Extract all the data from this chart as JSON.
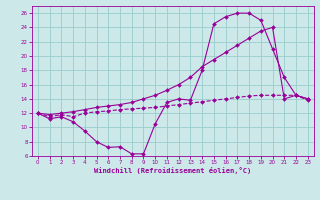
{
  "xlabel": "Windchill (Refroidissement éolien,°C)",
  "bg_color": "#cce8e8",
  "line_color": "#990099",
  "grid_color": "#99cccc",
  "xlim": [
    -0.5,
    23.5
  ],
  "ylim": [
    6,
    27
  ],
  "xticks": [
    0,
    1,
    2,
    3,
    4,
    5,
    6,
    7,
    8,
    9,
    10,
    11,
    12,
    13,
    14,
    15,
    16,
    17,
    18,
    19,
    20,
    21,
    22,
    23
  ],
  "yticks": [
    6,
    8,
    10,
    12,
    14,
    16,
    18,
    20,
    22,
    24,
    26
  ],
  "series1_x": [
    0,
    1,
    2,
    3,
    4,
    5,
    6,
    7,
    8,
    9,
    10,
    11,
    12,
    13,
    14,
    15,
    16,
    17,
    18,
    19,
    20,
    21,
    22,
    23
  ],
  "series1_y": [
    12,
    11.2,
    11.5,
    10.8,
    9.5,
    8.0,
    7.2,
    7.3,
    6.3,
    6.3,
    10.5,
    13.5,
    14.0,
    13.8,
    18.0,
    24.5,
    25.5,
    26.0,
    26.0,
    25.0,
    21.0,
    17.0,
    14.5,
    14.0
  ],
  "series2_x": [
    0,
    1,
    2,
    3,
    4,
    5,
    6,
    7,
    8,
    9,
    10,
    11,
    12,
    13,
    14,
    15,
    16,
    17,
    18,
    19,
    20,
    21,
    22,
    23
  ],
  "series2_y": [
    12,
    11.5,
    11.8,
    11.5,
    12.0,
    12.2,
    12.3,
    12.5,
    12.6,
    12.7,
    12.8,
    13.0,
    13.2,
    13.4,
    13.6,
    13.8,
    14.0,
    14.2,
    14.4,
    14.5,
    14.5,
    14.5,
    14.5,
    13.8
  ],
  "series3_x": [
    0,
    1,
    2,
    3,
    4,
    5,
    6,
    7,
    8,
    9,
    10,
    11,
    12,
    13,
    14,
    15,
    16,
    17,
    18,
    19,
    20,
    21,
    22,
    23
  ],
  "series3_y": [
    12,
    11.8,
    12.0,
    12.2,
    12.5,
    12.8,
    13.0,
    13.2,
    13.5,
    14.0,
    14.5,
    15.2,
    16.0,
    17.0,
    18.5,
    19.5,
    20.5,
    21.5,
    22.5,
    23.5,
    24.0,
    14.0,
    14.5,
    14.0
  ]
}
